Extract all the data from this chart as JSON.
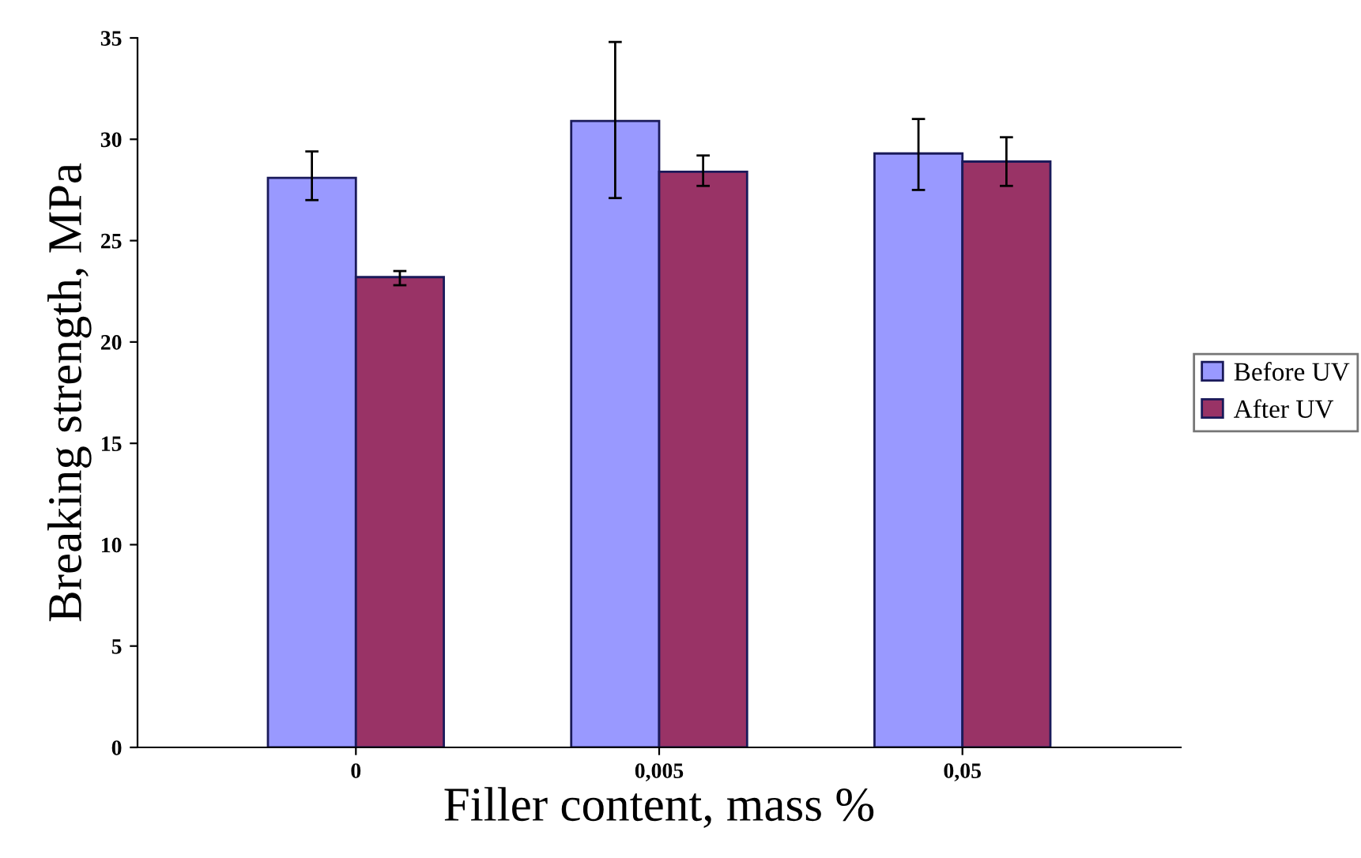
{
  "chart_data": {
    "type": "bar",
    "xlabel": "Filler content, mass %",
    "ylabel": "Breaking strength, MPa",
    "categories": [
      "0",
      "0,005",
      "0,05"
    ],
    "series": [
      {
        "name": "Before UV",
        "color": "#9999ff",
        "values": [
          28.1,
          30.9,
          29.3
        ],
        "errors": [
          [
            27.0,
            29.4
          ],
          [
            27.1,
            34.8
          ],
          [
            27.5,
            31.0
          ]
        ]
      },
      {
        "name": "After UV",
        "color": "#993366",
        "values": [
          23.2,
          28.4,
          28.9
        ],
        "errors": [
          [
            22.8,
            23.5
          ],
          [
            27.7,
            29.2
          ],
          [
            27.7,
            30.1
          ]
        ]
      }
    ],
    "ylim": [
      0,
      35
    ],
    "yticks": [
      0,
      5,
      10,
      15,
      20,
      25,
      30,
      35
    ],
    "grid": false,
    "legend": "right"
  }
}
